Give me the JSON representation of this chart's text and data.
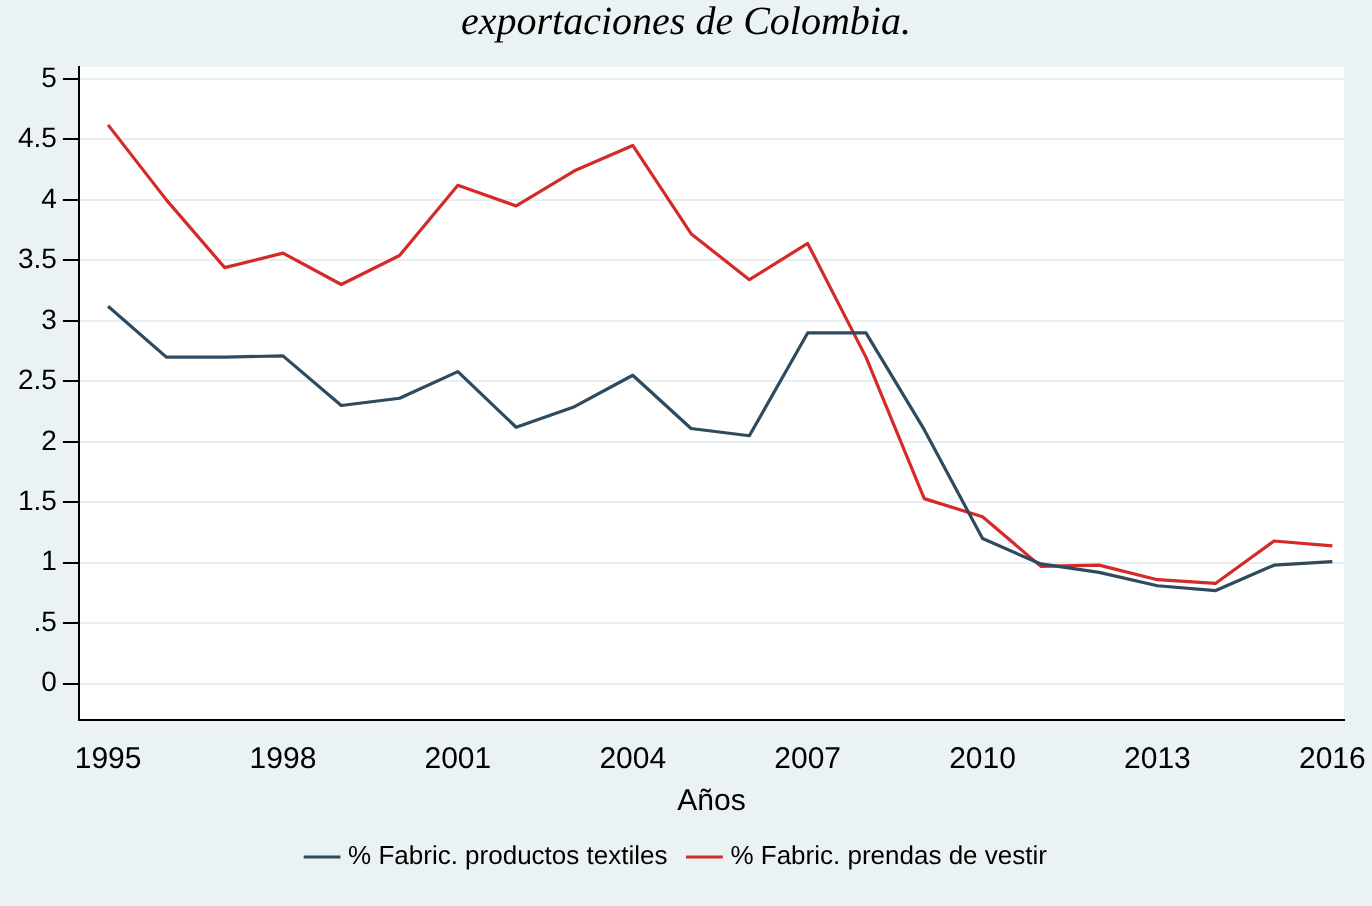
{
  "chart_data": {
    "type": "line",
    "title": "exportaciones de Colombia.",
    "xlabel": "Años",
    "x": [
      1995,
      1996,
      1997,
      1998,
      1999,
      2000,
      2001,
      2002,
      2003,
      2004,
      2005,
      2006,
      2007,
      2008,
      2009,
      2010,
      2011,
      2012,
      2013,
      2014,
      2015,
      2016
    ],
    "series": [
      {
        "name": "% Fabric. productos textiles",
        "color": "#2d4a5e",
        "values": [
          3.12,
          2.7,
          2.7,
          2.71,
          2.3,
          2.36,
          2.58,
          2.12,
          2.29,
          2.55,
          2.11,
          2.05,
          2.9,
          2.9,
          2.1,
          1.2,
          0.99,
          0.92,
          0.81,
          0.77,
          0.98,
          1.01
        ]
      },
      {
        "name": "% Fabric. prendas de vestir",
        "color": "#d42a2a",
        "values": [
          4.62,
          4.0,
          3.44,
          3.56,
          3.3,
          3.54,
          4.12,
          3.95,
          4.24,
          4.45,
          3.72,
          3.34,
          3.64,
          2.7,
          1.53,
          1.38,
          0.97,
          0.98,
          0.86,
          0.83,
          1.18,
          1.14
        ]
      }
    ],
    "xlim": [
      1994.5,
      2016.2
    ],
    "xticks": [
      1995,
      1998,
      2001,
      2004,
      2007,
      2010,
      2013,
      2016
    ],
    "ylim": [
      -0.3,
      5.1
    ],
    "yticks": [
      0,
      {
        "value": 0.5,
        "label": ".5"
      },
      1,
      1.5,
      2,
      2.5,
      3,
      3.5,
      4,
      4.5,
      5
    ],
    "grid": "y",
    "legend": "bottom",
    "marker": "none",
    "line_style": "solid"
  }
}
